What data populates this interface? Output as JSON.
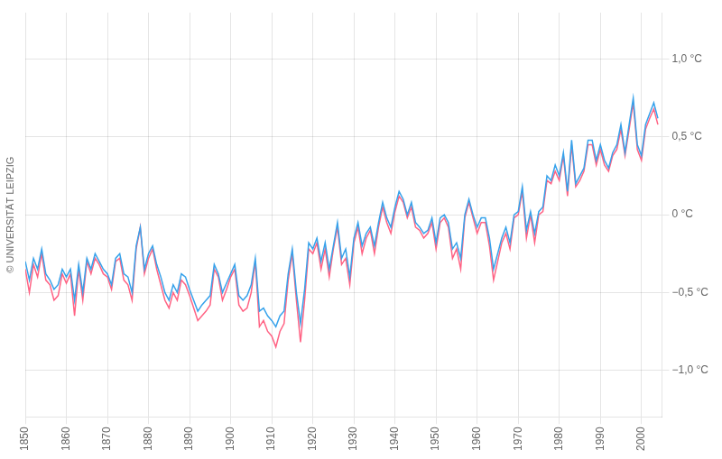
{
  "chart_data": {
    "type": "line",
    "annotations": [
      "© UNIVERSITÄT LEIPZIG"
    ],
    "grid": true,
    "xlim": [
      1850,
      2005
    ],
    "xticks": [
      1850,
      1860,
      1870,
      1880,
      1890,
      1900,
      1910,
      1920,
      1930,
      1940,
      1950,
      1960,
      1970,
      1980,
      1990,
      2000
    ],
    "ylim": [
      -1.3,
      1.3
    ],
    "yticks": [
      {
        "value": -1.0,
        "label": "−1,0 °C"
      },
      {
        "value": -0.5,
        "label": "−0,5 °C"
      },
      {
        "value": 0.0,
        "label": "0 °C"
      },
      {
        "value": 0.5,
        "label": "0,5 °C"
      },
      {
        "value": 1.0,
        "label": "1,0 °C"
      }
    ],
    "x": [
      1850,
      1851,
      1852,
      1853,
      1854,
      1855,
      1856,
      1857,
      1858,
      1859,
      1860,
      1861,
      1862,
      1863,
      1864,
      1865,
      1866,
      1867,
      1868,
      1869,
      1870,
      1871,
      1872,
      1873,
      1874,
      1875,
      1876,
      1877,
      1878,
      1879,
      1880,
      1881,
      1882,
      1883,
      1884,
      1885,
      1886,
      1887,
      1888,
      1889,
      1890,
      1891,
      1892,
      1893,
      1894,
      1895,
      1896,
      1897,
      1898,
      1899,
      1900,
      1901,
      1902,
      1903,
      1904,
      1905,
      1906,
      1907,
      1908,
      1909,
      1910,
      1911,
      1912,
      1913,
      1914,
      1915,
      1916,
      1917,
      1918,
      1919,
      1920,
      1921,
      1922,
      1923,
      1924,
      1925,
      1926,
      1927,
      1928,
      1929,
      1930,
      1931,
      1932,
      1933,
      1934,
      1935,
      1936,
      1937,
      1938,
      1939,
      1940,
      1941,
      1942,
      1943,
      1944,
      1945,
      1946,
      1947,
      1948,
      1949,
      1950,
      1951,
      1952,
      1953,
      1954,
      1955,
      1956,
      1957,
      1958,
      1959,
      1960,
      1961,
      1962,
      1963,
      1964,
      1965,
      1966,
      1967,
      1968,
      1969,
      1970,
      1971,
      1972,
      1973,
      1974,
      1975,
      1976,
      1977,
      1978,
      1979,
      1980,
      1981,
      1982,
      1983,
      1984,
      1985,
      1986,
      1987,
      1988,
      1989,
      1990,
      1991,
      1992,
      1993,
      1994,
      1995,
      1996,
      1997,
      1998,
      1999,
      2000,
      2001,
      2002,
      2003,
      2004
    ],
    "series": [
      {
        "values": [
          -0.3,
          -0.42,
          -0.28,
          -0.35,
          -0.22,
          -0.38,
          -0.42,
          -0.48,
          -0.45,
          -0.35,
          -0.4,
          -0.35,
          -0.55,
          -0.32,
          -0.5,
          -0.28,
          -0.35,
          -0.25,
          -0.3,
          -0.35,
          -0.38,
          -0.45,
          -0.28,
          -0.25,
          -0.38,
          -0.4,
          -0.5,
          -0.2,
          -0.08,
          -0.35,
          -0.25,
          -0.2,
          -0.32,
          -0.4,
          -0.5,
          -0.55,
          -0.45,
          -0.5,
          -0.38,
          -0.4,
          -0.48,
          -0.55,
          -0.62,
          -0.58,
          -0.55,
          -0.52,
          -0.32,
          -0.38,
          -0.5,
          -0.44,
          -0.38,
          -0.32,
          -0.52,
          -0.55,
          -0.52,
          -0.45,
          -0.28,
          -0.62,
          -0.6,
          -0.65,
          -0.68,
          -0.72,
          -0.65,
          -0.62,
          -0.38,
          -0.22,
          -0.5,
          -0.7,
          -0.48,
          -0.18,
          -0.22,
          -0.15,
          -0.3,
          -0.18,
          -0.35,
          -0.2,
          -0.05,
          -0.28,
          -0.22,
          -0.4,
          -0.15,
          -0.05,
          -0.2,
          -0.12,
          -0.08,
          -0.2,
          -0.05,
          0.08,
          -0.02,
          -0.08,
          0.05,
          0.15,
          0.1,
          -0.0,
          0.08,
          -0.05,
          -0.08,
          -0.12,
          -0.1,
          -0.02,
          -0.18,
          -0.02,
          -0.0,
          -0.05,
          -0.22,
          -0.18,
          -0.28,
          -0.0,
          0.1,
          -0.0,
          -0.08,
          -0.02,
          -0.02,
          -0.15,
          -0.35,
          -0.25,
          -0.15,
          -0.08,
          -0.18,
          0.0,
          0.02,
          0.18,
          -0.1,
          0.02,
          -0.12,
          0.02,
          0.05,
          0.25,
          0.22,
          0.32,
          0.25,
          0.4,
          0.15,
          0.48,
          0.2,
          0.25,
          0.3,
          0.48,
          0.48,
          0.35,
          0.45,
          0.35,
          0.3,
          0.4,
          0.45,
          0.58,
          0.4,
          0.58,
          0.75,
          0.45,
          0.38,
          0.58,
          0.65,
          0.72,
          0.62
        ]
      },
      {
        "values": [
          -0.35,
          -0.5,
          -0.32,
          -0.4,
          -0.25,
          -0.42,
          -0.45,
          -0.55,
          -0.52,
          -0.38,
          -0.44,
          -0.38,
          -0.65,
          -0.35,
          -0.55,
          -0.3,
          -0.38,
          -0.28,
          -0.32,
          -0.38,
          -0.4,
          -0.48,
          -0.3,
          -0.28,
          -0.42,
          -0.45,
          -0.55,
          -0.22,
          -0.08,
          -0.38,
          -0.28,
          -0.22,
          -0.35,
          -0.45,
          -0.55,
          -0.6,
          -0.5,
          -0.55,
          -0.42,
          -0.45,
          -0.52,
          -0.6,
          -0.68,
          -0.65,
          -0.62,
          -0.58,
          -0.35,
          -0.4,
          -0.55,
          -0.48,
          -0.4,
          -0.35,
          -0.58,
          -0.62,
          -0.6,
          -0.5,
          -0.3,
          -0.72,
          -0.68,
          -0.75,
          -0.78,
          -0.85,
          -0.75,
          -0.7,
          -0.42,
          -0.25,
          -0.55,
          -0.82,
          -0.55,
          -0.22,
          -0.25,
          -0.18,
          -0.35,
          -0.22,
          -0.4,
          -0.22,
          -0.08,
          -0.32,
          -0.28,
          -0.45,
          -0.18,
          -0.08,
          -0.25,
          -0.15,
          -0.1,
          -0.25,
          -0.08,
          0.05,
          -0.05,
          -0.12,
          0.02,
          0.12,
          0.08,
          -0.02,
          0.05,
          -0.08,
          -0.1,
          -0.15,
          -0.12,
          -0.05,
          -0.22,
          -0.05,
          -0.02,
          -0.08,
          -0.28,
          -0.22,
          -0.35,
          -0.02,
          0.08,
          -0.02,
          -0.12,
          -0.05,
          -0.05,
          -0.2,
          -0.42,
          -0.3,
          -0.18,
          -0.12,
          -0.22,
          -0.02,
          0.0,
          0.15,
          -0.15,
          -0.0,
          -0.18,
          0.0,
          0.02,
          0.22,
          0.2,
          0.28,
          0.22,
          0.38,
          0.12,
          0.45,
          0.18,
          0.22,
          0.28,
          0.45,
          0.45,
          0.32,
          0.42,
          0.32,
          0.28,
          0.38,
          0.42,
          0.55,
          0.38,
          0.55,
          0.72,
          0.42,
          0.35,
          0.55,
          0.62,
          0.68,
          0.58
        ]
      }
    ]
  }
}
